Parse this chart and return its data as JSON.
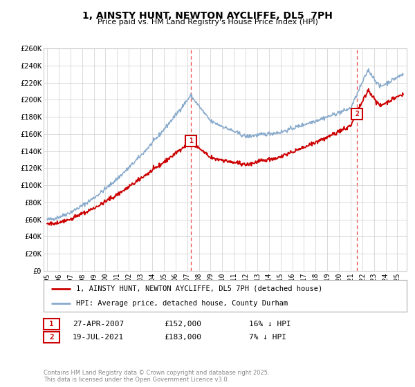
{
  "title": "1, AINSTY HUNT, NEWTON AYCLIFFE, DL5  7PH",
  "subtitle": "Price paid vs. HM Land Registry's House Price Index (HPI)",
  "ylim": [
    0,
    260000
  ],
  "yticks": [
    0,
    20000,
    40000,
    60000,
    80000,
    100000,
    120000,
    140000,
    160000,
    180000,
    200000,
    220000,
    240000,
    260000
  ],
  "ytick_labels": [
    "£0",
    "£20K",
    "£40K",
    "£60K",
    "£80K",
    "£100K",
    "£120K",
    "£140K",
    "£160K",
    "£180K",
    "£200K",
    "£220K",
    "£240K",
    "£260K"
  ],
  "xlim_start": 1994.7,
  "xlim_end": 2025.8,
  "sale1_x": 2007.32,
  "sale1_y": 152000,
  "sale2_x": 2021.54,
  "sale2_y": 183000,
  "sale1_date": "27-APR-2007",
  "sale1_price": "£152,000",
  "sale1_hpi": "16% ↓ HPI",
  "sale2_date": "19-JUL-2021",
  "sale2_price": "£183,000",
  "sale2_hpi": "7% ↓ HPI",
  "red_line_color": "#cc0000",
  "blue_line_color": "#88aacc",
  "dashed_line_color": "#ee4444",
  "background_color": "#ffffff",
  "grid_color": "#cccccc",
  "legend_label_red": "1, AINSTY HUNT, NEWTON AYCLIFFE, DL5 7PH (detached house)",
  "legend_label_blue": "HPI: Average price, detached house, County Durham",
  "copyright_text": "Contains HM Land Registry data © Crown copyright and database right 2025.\nThis data is licensed under the Open Government Licence v3.0.",
  "xtick_years": [
    1995,
    1996,
    1997,
    1998,
    1999,
    2000,
    2001,
    2002,
    2003,
    2004,
    2005,
    2006,
    2007,
    2008,
    2009,
    2010,
    2011,
    2012,
    2013,
    2014,
    2015,
    2016,
    2017,
    2018,
    2019,
    2020,
    2021,
    2022,
    2023,
    2024,
    2025
  ]
}
